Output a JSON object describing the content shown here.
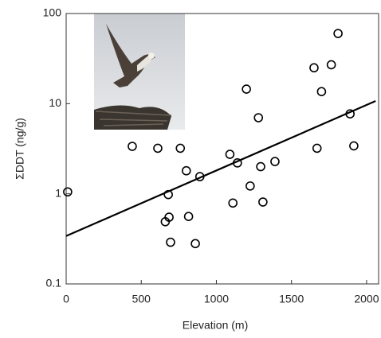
{
  "chart_data": {
    "type": "scatter",
    "x_label": "Elevation (m)",
    "y_label": "ΣDDT (ng/g)",
    "x": [
      10,
      440,
      610,
      760,
      800,
      680,
      685,
      660,
      695,
      815,
      860,
      890,
      1090,
      1140,
      1110,
      1200,
      1280,
      1295,
      1225,
      1310,
      1390,
      1650,
      1765,
      1810,
      1700,
      1670,
      1890,
      1915
    ],
    "y": [
      1.05,
      3.36,
      3.2,
      3.2,
      1.8,
      0.98,
      0.55,
      0.49,
      0.29,
      0.56,
      0.28,
      1.55,
      2.74,
      2.2,
      0.79,
      14.5,
      6.98,
      2.0,
      1.22,
      0.81,
      2.28,
      25,
      27,
      60,
      13.6,
      3.2,
      7.7,
      3.4
    ],
    "color": "#000000",
    "trendline": {
      "x": [
        0,
        2060
      ],
      "y": [
        0.34,
        10.7
      ]
    },
    "xlim": [
      0,
      2080
    ],
    "xticks": [
      0,
      500,
      1000,
      1500,
      2000
    ],
    "ylim": [
      0.1,
      100
    ],
    "yticks": [
      0.1,
      1,
      10,
      100
    ],
    "log_y": true,
    "grid": false
  }
}
